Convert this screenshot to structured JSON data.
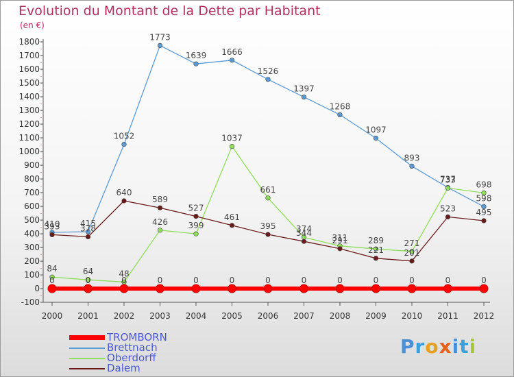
{
  "title": "Evolution du Montant de la Dette par Habitant",
  "unit": "(en €)",
  "logo": "Proxiti",
  "chart_data": {
    "type": "line",
    "title": "Evolution du Montant de la Dette par Habitant",
    "ylabel": "(en €)",
    "xlabel": "",
    "ylim": [
      -100,
      1800
    ],
    "yticks": [
      -100,
      0,
      100,
      200,
      300,
      400,
      500,
      600,
      700,
      800,
      900,
      1000,
      1100,
      1200,
      1300,
      1400,
      1500,
      1600,
      1700,
      1800
    ],
    "x": [
      "2000",
      "2001",
      "2002",
      "2003",
      "2004",
      "2005",
      "2006",
      "2007",
      "2008",
      "2009",
      "2010",
      "2011",
      "2012"
    ],
    "series": [
      {
        "name": "TROMBORN",
        "color": "#ff0000",
        "values": [
          0,
          0,
          0,
          0,
          0,
          0,
          0,
          0,
          0,
          0,
          0,
          0,
          0
        ]
      },
      {
        "name": "Brettnach",
        "color": "#5b9bd5",
        "values": [
          410,
          415,
          1052,
          1773,
          1639,
          1666,
          1526,
          1397,
          1268,
          1097,
          893,
          737,
          598
        ]
      },
      {
        "name": "Oberdorff",
        "color": "#8fdf5a",
        "values": [
          84,
          64,
          48,
          426,
          399,
          1037,
          661,
          374,
          311,
          289,
          271,
          733,
          698
        ]
      },
      {
        "name": "Dalem",
        "color": "#6b1a1a",
        "values": [
          393,
          378,
          640,
          589,
          527,
          461,
          395,
          344,
          291,
          221,
          201,
          523,
          495
        ]
      }
    ]
  }
}
